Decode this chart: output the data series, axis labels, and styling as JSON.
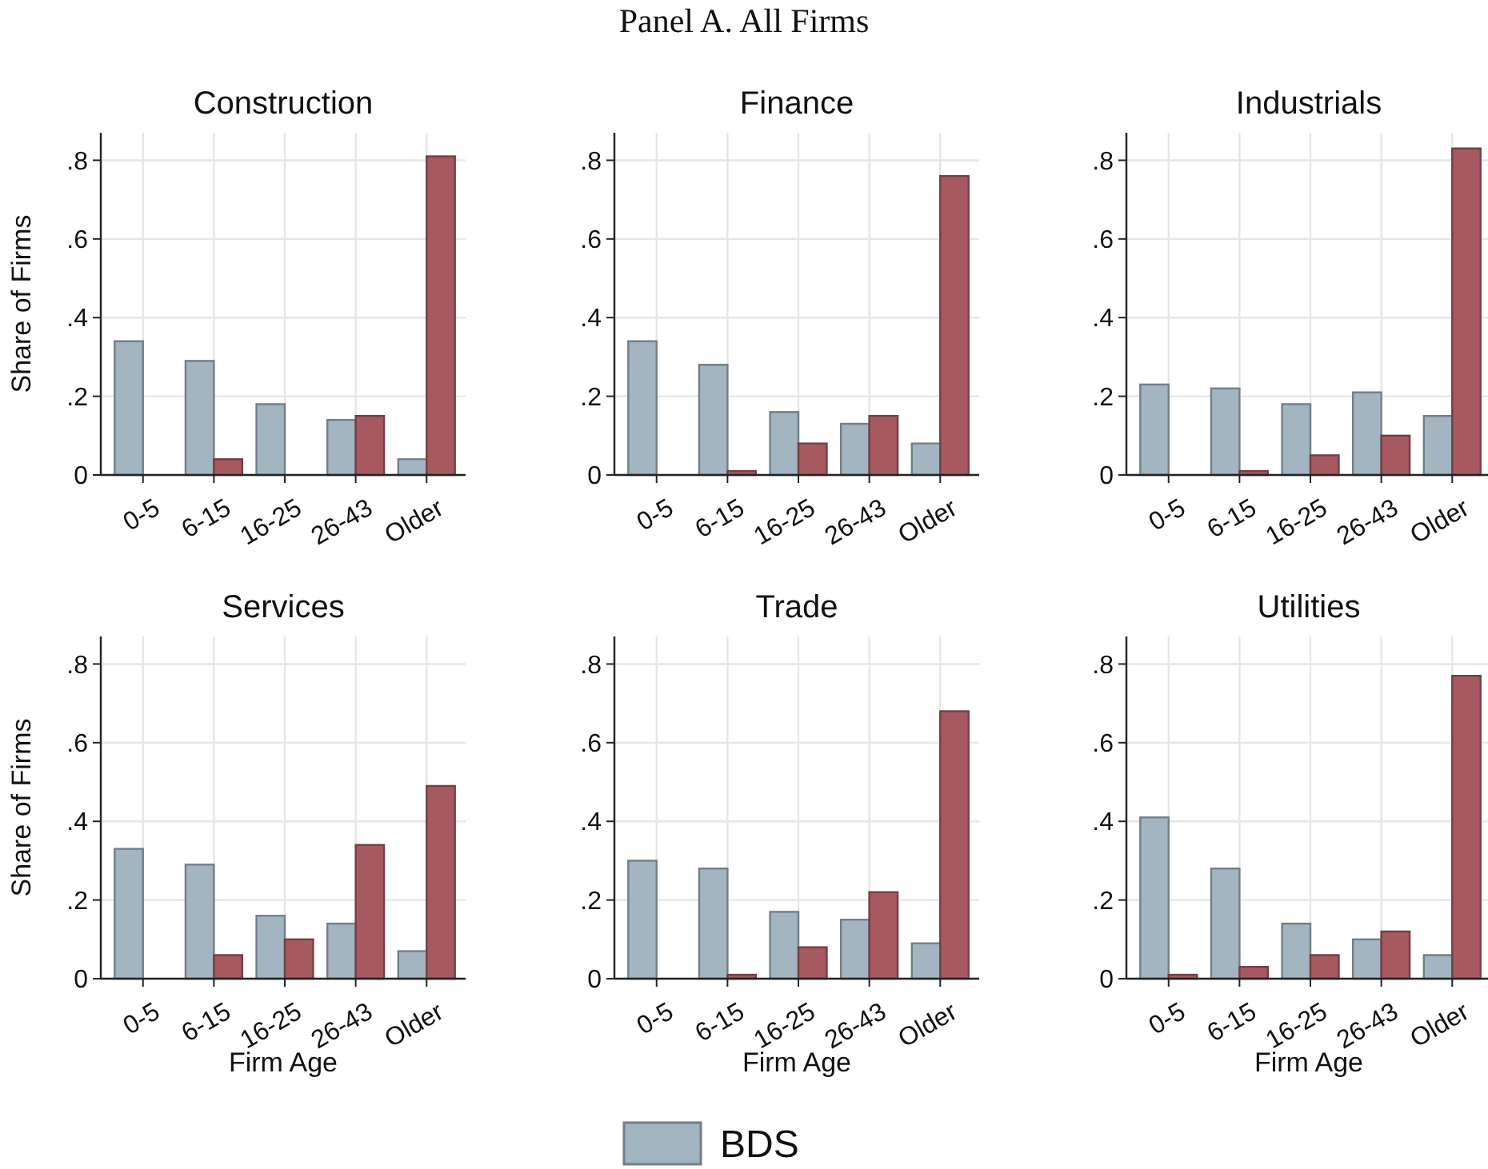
{
  "chart_data": [
    {
      "type": "bar",
      "title": "Construction",
      "annotations": [
        "Panel A. All Firms"
      ],
      "ylabel": "Share of Firms",
      "categories": [
        "0-5",
        "6-15",
        "16-25",
        "26-43",
        "Older"
      ],
      "ylim": [
        0,
        0.87
      ],
      "yticks": [
        {
          "value": 0,
          "label": "0"
        },
        {
          "value": 0.2,
          "label": ".2"
        },
        {
          "value": 0.4,
          "label": ".4"
        },
        {
          "value": 0.6,
          "label": ".6"
        },
        {
          "value": 0.8,
          "label": ".8"
        }
      ],
      "grid": true,
      "series": [
        {
          "color": "#a3b5c1",
          "values": [
            0.34,
            0.29,
            0.18,
            0.14,
            0.04
          ]
        },
        {
          "color": "#a65a60",
          "values": [
            0,
            0.04,
            0,
            0.15,
            0.81
          ]
        }
      ]
    },
    {
      "type": "bar",
      "title": "Finance",
      "categories": [
        "0-5",
        "6-15",
        "16-25",
        "26-43",
        "Older"
      ],
      "ylim": [
        0,
        0.87
      ],
      "yticks": [
        {
          "value": 0,
          "label": "0"
        },
        {
          "value": 0.2,
          "label": ".2"
        },
        {
          "value": 0.4,
          "label": ".4"
        },
        {
          "value": 0.6,
          "label": ".6"
        },
        {
          "value": 0.8,
          "label": ".8"
        }
      ],
      "grid": true,
      "series": [
        {
          "color": "#a3b5c1",
          "values": [
            0.34,
            0.28,
            0.16,
            0.13,
            0.08
          ]
        },
        {
          "color": "#a65a60",
          "values": [
            0,
            0.01,
            0.08,
            0.15,
            0.76
          ]
        }
      ]
    },
    {
      "type": "bar",
      "title": "Industrials",
      "categories": [
        "0-5",
        "6-15",
        "16-25",
        "26-43",
        "Older"
      ],
      "ylim": [
        0,
        0.87
      ],
      "yticks": [
        {
          "value": 0,
          "label": "0"
        },
        {
          "value": 0.2,
          "label": ".2"
        },
        {
          "value": 0.4,
          "label": ".4"
        },
        {
          "value": 0.6,
          "label": ".6"
        },
        {
          "value": 0.8,
          "label": ".8"
        }
      ],
      "grid": true,
      "series": [
        {
          "color": "#a3b5c1",
          "values": [
            0.23,
            0.22,
            0.18,
            0.21,
            0.15
          ]
        },
        {
          "color": "#a65a60",
          "values": [
            0,
            0.01,
            0.05,
            0.1,
            0.83
          ]
        }
      ]
    },
    {
      "type": "bar",
      "title": "Services",
      "ylabel": "Share of Firms",
      "xlabel": "Firm Age",
      "categories": [
        "0-5",
        "6-15",
        "16-25",
        "26-43",
        "Older"
      ],
      "ylim": [
        0,
        0.87
      ],
      "yticks": [
        {
          "value": 0,
          "label": "0"
        },
        {
          "value": 0.2,
          "label": ".2"
        },
        {
          "value": 0.4,
          "label": ".4"
        },
        {
          "value": 0.6,
          "label": ".6"
        },
        {
          "value": 0.8,
          "label": ".8"
        }
      ],
      "grid": true,
      "series": [
        {
          "color": "#a3b5c1",
          "values": [
            0.33,
            0.29,
            0.16,
            0.14,
            0.07
          ]
        },
        {
          "color": "#a65a60",
          "values": [
            0,
            0.06,
            0.1,
            0.34,
            0.49
          ]
        }
      ]
    },
    {
      "type": "bar",
      "title": "Trade",
      "xlabel": "Firm Age",
      "categories": [
        "0-5",
        "6-15",
        "16-25",
        "26-43",
        "Older"
      ],
      "ylim": [
        0,
        0.87
      ],
      "yticks": [
        {
          "value": 0,
          "label": "0"
        },
        {
          "value": 0.2,
          "label": ".2"
        },
        {
          "value": 0.4,
          "label": ".4"
        },
        {
          "value": 0.6,
          "label": ".6"
        },
        {
          "value": 0.8,
          "label": ".8"
        }
      ],
      "grid": true,
      "series": [
        {
          "color": "#a3b5c1",
          "values": [
            0.3,
            0.28,
            0.17,
            0.15,
            0.09
          ]
        },
        {
          "color": "#a65a60",
          "values": [
            0,
            0.01,
            0.08,
            0.22,
            0.68
          ]
        }
      ]
    },
    {
      "type": "bar",
      "title": "Utilities",
      "xlabel": "Firm Age",
      "categories": [
        "0-5",
        "6-15",
        "16-25",
        "26-43",
        "Older"
      ],
      "ylim": [
        0,
        0.87
      ],
      "yticks": [
        {
          "value": 0,
          "label": "0"
        },
        {
          "value": 0.2,
          "label": ".2"
        },
        {
          "value": 0.4,
          "label": ".4"
        },
        {
          "value": 0.6,
          "label": ".6"
        },
        {
          "value": 0.8,
          "label": ".8"
        }
      ],
      "grid": true,
      "legend": "bottom",
      "series": [
        {
          "name": "BDS",
          "color": "#a3b5c1",
          "values": [
            0.41,
            0.28,
            0.14,
            0.1,
            0.06
          ]
        },
        {
          "color": "#a65a60",
          "values": [
            0.01,
            0.03,
            0.06,
            0.12,
            0.77
          ]
        }
      ]
    }
  ]
}
